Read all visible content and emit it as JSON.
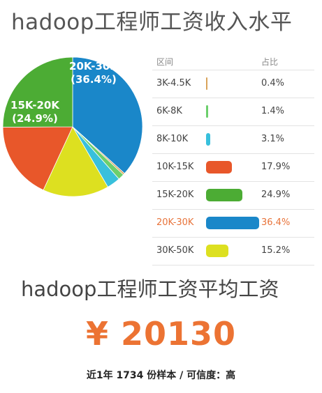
{
  "title": "hadoop工程师工资收入水平",
  "table": {
    "col_range": "区间",
    "col_ratio": "占比"
  },
  "chart_data": {
    "type": "pie",
    "title": "hadoop工程师工资收入水平",
    "categories": [
      "3K-4.5K",
      "6K-8K",
      "8K-10K",
      "10K-15K",
      "15K-20K",
      "20K-30K",
      "30K-50K"
    ],
    "values": [
      0.4,
      1.4,
      3.1,
      17.9,
      24.9,
      36.4,
      15.2
    ],
    "value_labels": [
      "0.4%",
      "1.4%",
      "3.1%",
      "17.9%",
      "24.9%",
      "36.4%",
      "15.2%"
    ],
    "colors": [
      "#d9a35a",
      "#6ccf6c",
      "#38c0dc",
      "#e8572a",
      "#4cac34",
      "#1a87c9",
      "#dde020"
    ],
    "highlight": "20K-30K",
    "pie_labels": [
      {
        "category": "20K-30K",
        "line1": "20K-30K",
        "line2": "(36.4%)"
      },
      {
        "category": "15K-20K",
        "line1": "15K-20K",
        "line2": "(24.9%)"
      }
    ]
  },
  "avg_title": "hadoop工程师工资平均工资",
  "average_salary": "¥ 20130",
  "footer": "近1年 1734 份样本 / 可信度：高",
  "colors": {
    "accent": "#ec7333",
    "highlight_text": "#e8733a"
  }
}
